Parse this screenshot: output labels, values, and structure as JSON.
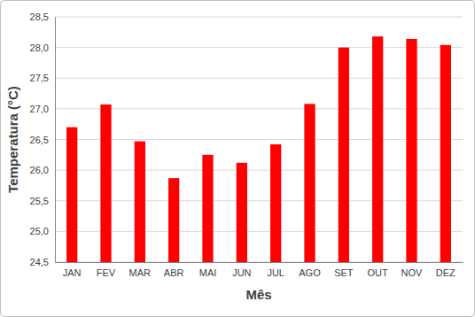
{
  "chart_data": {
    "type": "bar",
    "x_label": "Mês",
    "y_label": "Temperatura (°C)",
    "categories": [
      "JAN",
      "FEV",
      "MAR",
      "ABR",
      "MAI",
      "JUN",
      "JUL",
      "AGO",
      "SET",
      "OUT",
      "NOV",
      "DEZ"
    ],
    "values": [
      26.7,
      27.07,
      26.47,
      25.87,
      26.25,
      26.12,
      26.42,
      27.08,
      28.0,
      28.18,
      28.14,
      28.04
    ],
    "color": "#ff0000",
    "ylim": [
      24.5,
      28.5
    ],
    "yticks": [
      {
        "value": 24.5,
        "label": "24,5"
      },
      {
        "value": 25.0,
        "label": "25,0"
      },
      {
        "value": 25.5,
        "label": "25,5"
      },
      {
        "value": 26.0,
        "label": "26,0"
      },
      {
        "value": 26.5,
        "label": "26,5"
      },
      {
        "value": 27.0,
        "label": "27,0"
      },
      {
        "value": 27.5,
        "label": "27,5"
      },
      {
        "value": 28.0,
        "label": "28,0"
      },
      {
        "value": 28.5,
        "label": "28,5"
      }
    ],
    "grid": true
  }
}
